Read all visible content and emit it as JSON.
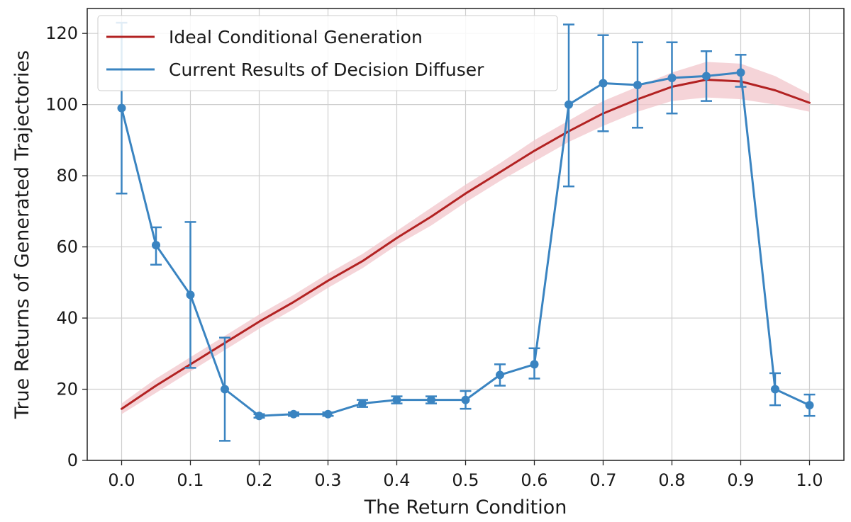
{
  "chart_data": {
    "type": "line",
    "title": "",
    "xlabel": "The Return Condition",
    "ylabel": "True Returns of Generated Trajectories",
    "xlim": [
      -0.05,
      1.05
    ],
    "ylim": [
      0,
      127
    ],
    "x_ticks": [
      0.0,
      0.1,
      0.2,
      0.3,
      0.4,
      0.5,
      0.6,
      0.7,
      0.8,
      0.9,
      1.0
    ],
    "x_tick_labels": [
      "0.0",
      "0.1",
      "0.2",
      "0.3",
      "0.4",
      "0.5",
      "0.6",
      "0.7",
      "0.8",
      "0.9",
      "1.0"
    ],
    "y_ticks": [
      0,
      20,
      40,
      60,
      80,
      100,
      120
    ],
    "y_tick_labels": [
      "0",
      "20",
      "40",
      "60",
      "80",
      "100",
      "120"
    ],
    "grid": true,
    "legend_position": "top-left",
    "series": [
      {
        "name": "Ideal Conditional Generation",
        "color": "#b22222",
        "band_color": "#f2c6cb",
        "x": [
          0.0,
          0.05,
          0.1,
          0.15,
          0.2,
          0.25,
          0.3,
          0.35,
          0.4,
          0.45,
          0.5,
          0.55,
          0.6,
          0.65,
          0.7,
          0.75,
          0.8,
          0.85,
          0.9,
          0.95,
          1.0
        ],
        "y": [
          14.5,
          21.0,
          27.0,
          33.0,
          39.0,
          44.5,
          50.5,
          56.0,
          62.5,
          68.5,
          75.0,
          81.0,
          87.0,
          92.5,
          97.5,
          101.5,
          105.0,
          107.0,
          106.5,
          104.0,
          100.5
        ],
        "band_width": [
          1.5,
          2.0,
          2.0,
          2.0,
          2.0,
          2.0,
          2.0,
          2.0,
          2.0,
          2.5,
          2.5,
          2.5,
          3.0,
          3.0,
          3.5,
          3.5,
          4.0,
          5.0,
          5.0,
          4.0,
          2.5
        ]
      },
      {
        "name": "Current Results of Decision Diffuser",
        "color": "#3a84c1",
        "x": [
          0.0,
          0.05,
          0.1,
          0.15,
          0.2,
          0.25,
          0.3,
          0.35,
          0.4,
          0.45,
          0.5,
          0.55,
          0.6,
          0.65,
          0.7,
          0.75,
          0.8,
          0.85,
          0.9,
          0.95,
          1.0
        ],
        "y": [
          99.0,
          60.5,
          46.5,
          20.0,
          12.5,
          13.0,
          13.0,
          16.0,
          17.0,
          17.0,
          17.0,
          24.0,
          27.0,
          100.0,
          106.0,
          105.5,
          107.5,
          108.0,
          109.0,
          20.0,
          15.5
        ],
        "error_low": [
          75.0,
          55.0,
          26.0,
          5.5,
          12.0,
          12.5,
          12.5,
          15.0,
          16.0,
          16.0,
          14.5,
          21.0,
          23.0,
          77.0,
          92.5,
          93.5,
          97.5,
          101.0,
          105.0,
          15.5,
          12.5
        ],
        "error_high": [
          123.0,
          65.5,
          67.0,
          34.5,
          13.0,
          13.5,
          13.5,
          17.0,
          18.0,
          18.0,
          19.5,
          27.0,
          31.5,
          122.5,
          119.5,
          117.5,
          117.5,
          115.0,
          114.0,
          24.5,
          18.5
        ]
      }
    ]
  }
}
